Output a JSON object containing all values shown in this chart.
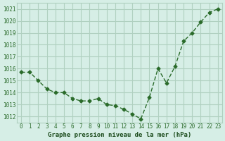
{
  "x": [
    0,
    1,
    2,
    3,
    4,
    5,
    6,
    7,
    8,
    9,
    10,
    11,
    12,
    13,
    14,
    15,
    16,
    17,
    18,
    19,
    20,
    21,
    22,
    23
  ],
  "y": [
    1015.7,
    1015.7,
    1015.0,
    1014.3,
    1014.0,
    1014.0,
    1013.5,
    1013.3,
    1013.3,
    1013.5,
    1013.0,
    1012.9,
    1012.6,
    1012.2,
    1011.8,
    1013.6,
    1016.0,
    1014.8,
    1016.2,
    1018.3,
    1019.0,
    1019.9,
    1020.7,
    1021.0
  ],
  "line_color": "#2a6b2a",
  "marker_color": "#2a6b2a",
  "bg_color": "#d6eee6",
  "grid_color": "#b0d0c0",
  "xlabel": "Graphe pression niveau de la mer (hPa)",
  "xlabel_color": "#1a4a1a",
  "axis_label_color": "#2a6b2a",
  "ylim_min": 1011.5,
  "ylim_max": 1021.5,
  "yticks": [
    1012,
    1013,
    1014,
    1015,
    1016,
    1017,
    1018,
    1019,
    1020,
    1021
  ],
  "xticks": [
    0,
    1,
    2,
    3,
    4,
    5,
    6,
    7,
    8,
    9,
    10,
    11,
    12,
    13,
    14,
    15,
    16,
    17,
    18,
    19,
    20,
    21,
    22,
    23
  ]
}
